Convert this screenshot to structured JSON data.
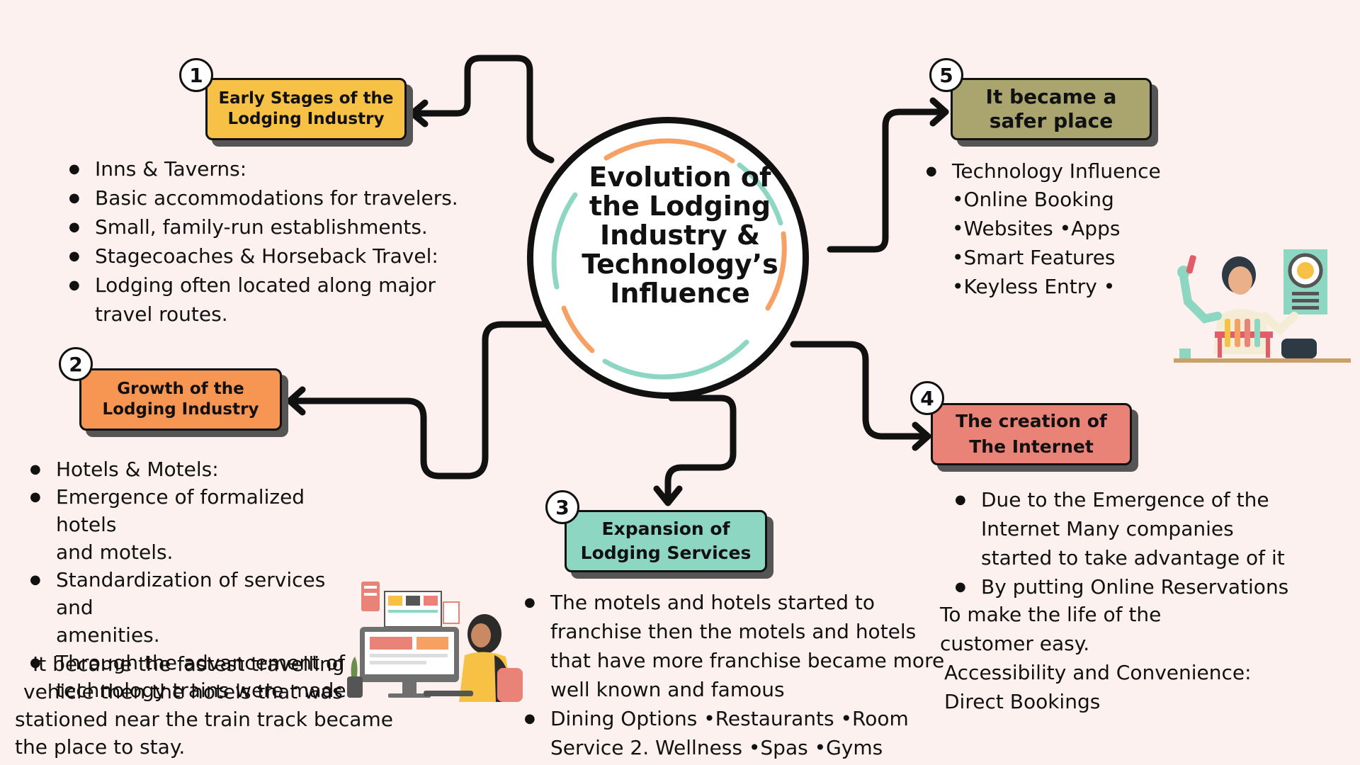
{
  "center": {
    "title_lines": [
      "Evolution of",
      "the Lodging",
      "Industry &",
      "Technology’s",
      "Influence"
    ]
  },
  "colors": {
    "background": "#fdf1ef",
    "box1": "#f6c144",
    "box2": "#f79552",
    "box3": "#8dd7c2",
    "box4": "#ea8377",
    "box5": "#aaa56f",
    "ring_orange": "#f6a063",
    "ring_teal": "#8dd7c2"
  },
  "sections": {
    "s1": {
      "number": "1",
      "title": "Early Stages of the\nLodging Industry",
      "bullets": [
        "Inns & Taverns:",
        "Basic accommodations for travelers.",
        "Small, family-run establishments.",
        "Stagecoaches & Horseback Travel:",
        "Lodging often located along major\ntravel routes."
      ]
    },
    "s2": {
      "number": "2",
      "title": "Growth of the\nLodging Industry",
      "bullets": [
        "Hotels & Motels:",
        "Emergence of formalized hotels\nand motels.",
        "Standardization of services and\namenities.",
        "Through the advancement of\ntechnology trains were made"
      ],
      "extra_lines": [
        "It became the fastest travelling",
        "vehicle then the hotels that was",
        "stationed near the train track became",
        "the place to stay."
      ]
    },
    "s3": {
      "number": "3",
      "title": "Expansion of\nLodging Services",
      "bullets": [
        "The motels and hotels started to\nfranchise then the motels and hotels\nthat have more franchise became more\nwell known and famous",
        "Dining Options •Restaurants •Room\nService 2. Wellness •Spas •Gyms"
      ]
    },
    "s4": {
      "number": "4",
      "title": "The creation of\nThe Internet",
      "bullets": [
        "Due to the Emergence of the\nInternet  Many companies\nstarted to take advantage of it",
        "By putting Online Reservations"
      ],
      "extra_lines": [
        "To make the life of the",
        "customer easy.",
        "Accessibility and Convenience:",
        "Direct Bookings"
      ]
    },
    "s5": {
      "number": "5",
      "title": "It became a\nsafer place",
      "bullets": [
        "Technology Influence"
      ],
      "sub_lines": [
        "•Online Booking",
        "•Websites •Apps",
        "•Smart Features",
        "•Keyless Entry •"
      ]
    }
  },
  "illustrations": {
    "left": "person-at-computer-illustration",
    "right": "scientist-with-test-tubes-illustration"
  }
}
